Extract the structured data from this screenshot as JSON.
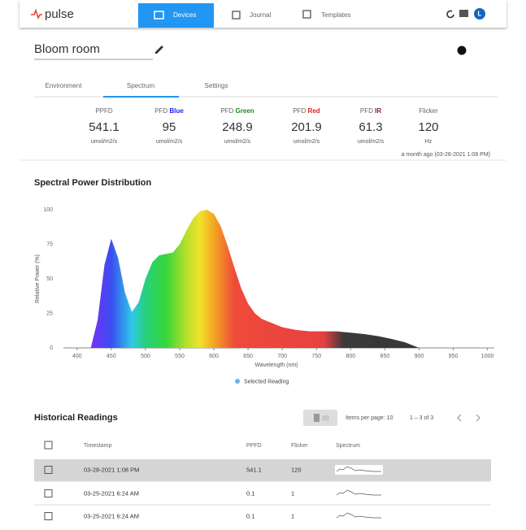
{
  "nav": {
    "logo": "pulse",
    "tabs": [
      "Devices",
      "Journal",
      "Templates"
    ],
    "avatar": "L"
  },
  "device": {
    "name": "Bloom room"
  },
  "tabs": [
    "Environment",
    "Spectrum",
    "Settings"
  ],
  "metrics": [
    {
      "label": "PPFD",
      "value": 541.1,
      "unit": "umol/m2/s"
    },
    {
      "label": "PFD",
      "accent": "Blue",
      "value": 95,
      "unit": "umol/m2/s"
    },
    {
      "label": "PFD",
      "accent": "Green",
      "value": 248.9,
      "unit": "umol/m2/s"
    },
    {
      "label": "PFD",
      "accent": "Red",
      "value": 201.9,
      "unit": "umol/m2/s"
    },
    {
      "label": "PFD",
      "accent": "IR",
      "value": 61.3,
      "unit": "umol/m2/s"
    },
    {
      "label": "Flicker",
      "value": 120,
      "unit": "Hz"
    }
  ],
  "timestamp": "a month ago (03-28-2021 1:08 PM)",
  "chart_data": {
    "type": "area",
    "title": "Spectral Power Distribution",
    "x_label": "Wavelength (nm)",
    "y_label": "Relative Power (%)",
    "x": [
      420,
      430,
      440,
      450,
      460,
      470,
      480,
      490,
      500,
      510,
      520,
      530,
      540,
      550,
      560,
      570,
      580,
      590,
      600,
      610,
      620,
      630,
      640,
      650,
      660,
      670,
      680,
      690,
      700,
      710,
      720,
      730,
      740,
      750,
      760,
      770,
      780,
      790,
      800,
      820,
      840,
      860,
      880,
      890,
      900
    ],
    "series": [
      {
        "name": "Selected Reading",
        "color": "#6ab0f0",
        "values": [
          0,
          20,
          60,
          79,
          65,
          40,
          26,
          33,
          50,
          62,
          67,
          68,
          69,
          75,
          85,
          94,
          99,
          100,
          97,
          88,
          74,
          58,
          43,
          32,
          25,
          21,
          19,
          17,
          15,
          14,
          13,
          12.5,
          12,
          12,
          12,
          12,
          12,
          11.5,
          11,
          10,
          8.5,
          6.5,
          4,
          2,
          0
        ]
      }
    ],
    "xlim": [
      380,
      1010
    ],
    "ylim": [
      0,
      100
    ],
    "xticks": [
      400,
      450,
      500,
      550,
      600,
      650,
      700,
      750,
      800,
      850,
      900,
      950,
      1000
    ],
    "yticks": [
      0,
      25,
      50,
      75,
      100
    ]
  },
  "history": {
    "title": "Historical Readings",
    "delete": "(0)",
    "page_size": "Items per page: 10",
    "range": "1 – 3 of 3",
    "columns": [
      "Timestamp",
      "PPFD",
      "Flicker",
      "Spectrum"
    ],
    "rows": [
      [
        "03-28-2021 1:08 PM",
        541.1,
        120
      ],
      [
        "03-25-2021 6:24 AM",
        0.1,
        1
      ],
      [
        "03-25-2021 6:24 AM",
        0.1,
        1
      ]
    ]
  }
}
